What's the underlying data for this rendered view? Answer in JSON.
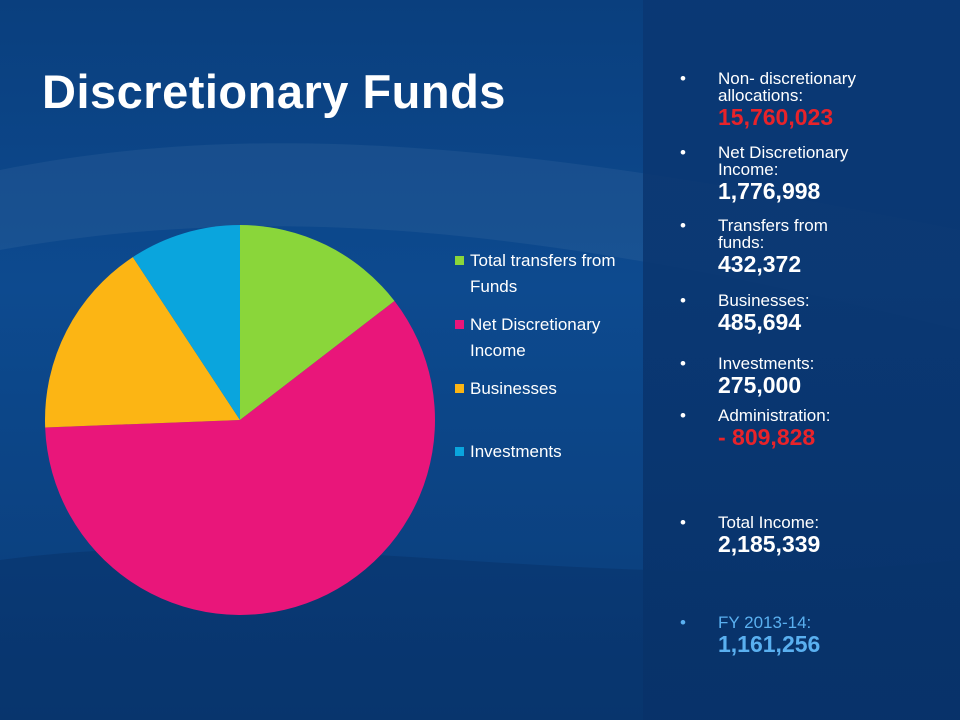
{
  "title": "Discretionary Funds",
  "chart_data": {
    "type": "pie",
    "categories": [
      "Total transfers from Funds",
      "Net Discretionary Income",
      "Businesses",
      "Investments"
    ],
    "values": [
      432372,
      1776998,
      485694,
      275000
    ],
    "colors": [
      "#8ad63a",
      "#e9167a",
      "#fcb514",
      "#0aa5dd"
    ],
    "legend_position": "right"
  },
  "legend": [
    {
      "label": "Total transfers from Funds",
      "color": "#8ad63a"
    },
    {
      "label": "Net Discretionary Income",
      "color": "#e9167a"
    },
    {
      "label": "Businesses",
      "color": "#fcb514"
    },
    {
      "label": "Investments",
      "color": "#0aa5dd"
    }
  ],
  "stats": [
    {
      "label": "Non- discretionary allocations:",
      "value": "15,760,023",
      "tone": "red"
    },
    {
      "label": "Net Discretionary Income:",
      "value": "1,776,998",
      "tone": "white"
    },
    {
      "label": "Transfers from funds:",
      "value": "432,372",
      "tone": "white"
    },
    {
      "label": "Businesses:",
      "value": "485,694",
      "tone": "white"
    },
    {
      "label": "Investments:",
      "value": "275,000",
      "tone": "white"
    },
    {
      "label": "Administration:",
      "value": "- 809,828",
      "tone": "red"
    },
    {
      "label": "Total Income:",
      "value": "2,185,339",
      "tone": "white"
    },
    {
      "label": "FY 2013-14:",
      "value": "1,161,256",
      "tone": "light"
    }
  ],
  "bullet_char": "•"
}
